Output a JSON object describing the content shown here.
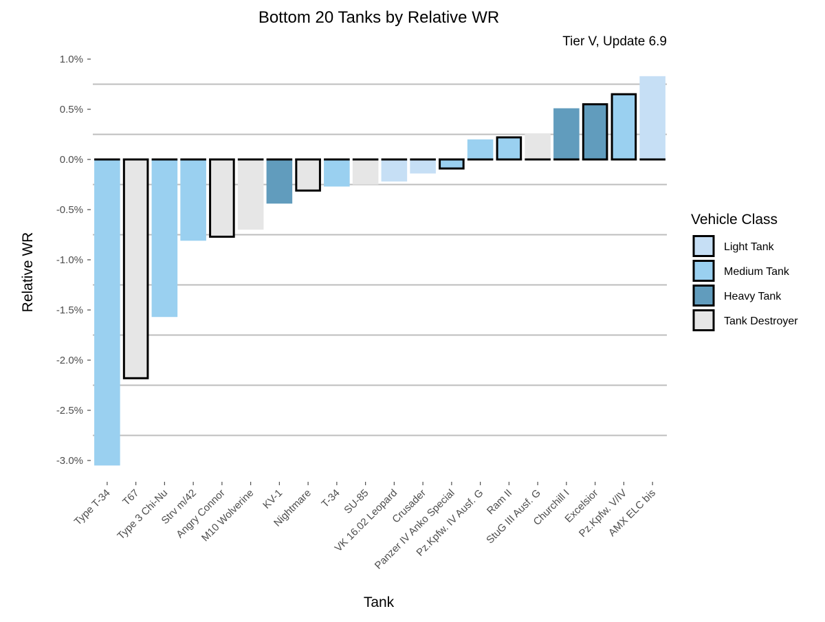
{
  "chart_data": {
    "type": "bar",
    "title": "Bottom 20 Tanks by Relative WR",
    "subtitle": "Tier V, Update 6.9",
    "xlabel": "Tank",
    "ylabel": "Relative WR",
    "ylim": [
      -3.1,
      1.0
    ],
    "yticks": [
      1.0,
      0.5,
      0.0,
      -0.5,
      -1.0,
      -1.5,
      -2.0,
      -2.5,
      -3.0
    ],
    "ytick_labels": [
      "1.0%",
      "0.5%",
      "0.0%",
      "-0.5%",
      "-1.0%",
      "-1.5%",
      "-2.0%",
      "-2.5%",
      "-3.0%"
    ],
    "grid": "horizontal minor lines",
    "legend": {
      "title": "Vehicle Class",
      "placement": "right",
      "entries": [
        {
          "name": "Light Tank",
          "color": "#c6dff5"
        },
        {
          "name": "Medium Tank",
          "color": "#9ad0f0"
        },
        {
          "name": "Heavy Tank",
          "color": "#619cbd"
        },
        {
          "name": "Tank Destroyer",
          "color": "#e6e6e6"
        }
      ]
    },
    "categories": [
      "Type T-34",
      "T67",
      "Type 3 Chi-Nu",
      "Strv m/42",
      "Angry Connor",
      "M10 Wolverine",
      "KV-1",
      "Nightmare",
      "T-34",
      "SU-85",
      "VK 16.02 Leopard",
      "Crusader",
      "Panzer IV Anko Special",
      "Pz.Kpfw. IV Ausf. G",
      "Ram II",
      "StuG III Ausf. G",
      "Churchill I",
      "Excelsior",
      "Pz.Kpfw. V/IV",
      "AMX ELC bis"
    ],
    "values": [
      -3.05,
      -2.18,
      -1.57,
      -0.81,
      -0.77,
      -0.7,
      -0.44,
      -0.31,
      -0.27,
      -0.25,
      -0.22,
      -0.14,
      -0.09,
      0.2,
      0.22,
      0.26,
      0.51,
      0.55,
      0.65,
      0.83
    ],
    "classes": [
      "Medium Tank",
      "Tank Destroyer",
      "Medium Tank",
      "Medium Tank",
      "Tank Destroyer",
      "Tank Destroyer",
      "Heavy Tank",
      "Tank Destroyer",
      "Medium Tank",
      "Tank Destroyer",
      "Light Tank",
      "Light Tank",
      "Medium Tank",
      "Medium Tank",
      "Medium Tank",
      "Tank Destroyer",
      "Heavy Tank",
      "Heavy Tank",
      "Medium Tank",
      "Light Tank"
    ],
    "outlined": [
      false,
      true,
      false,
      false,
      true,
      false,
      false,
      true,
      false,
      false,
      false,
      false,
      true,
      false,
      true,
      false,
      false,
      true,
      true,
      false
    ]
  }
}
